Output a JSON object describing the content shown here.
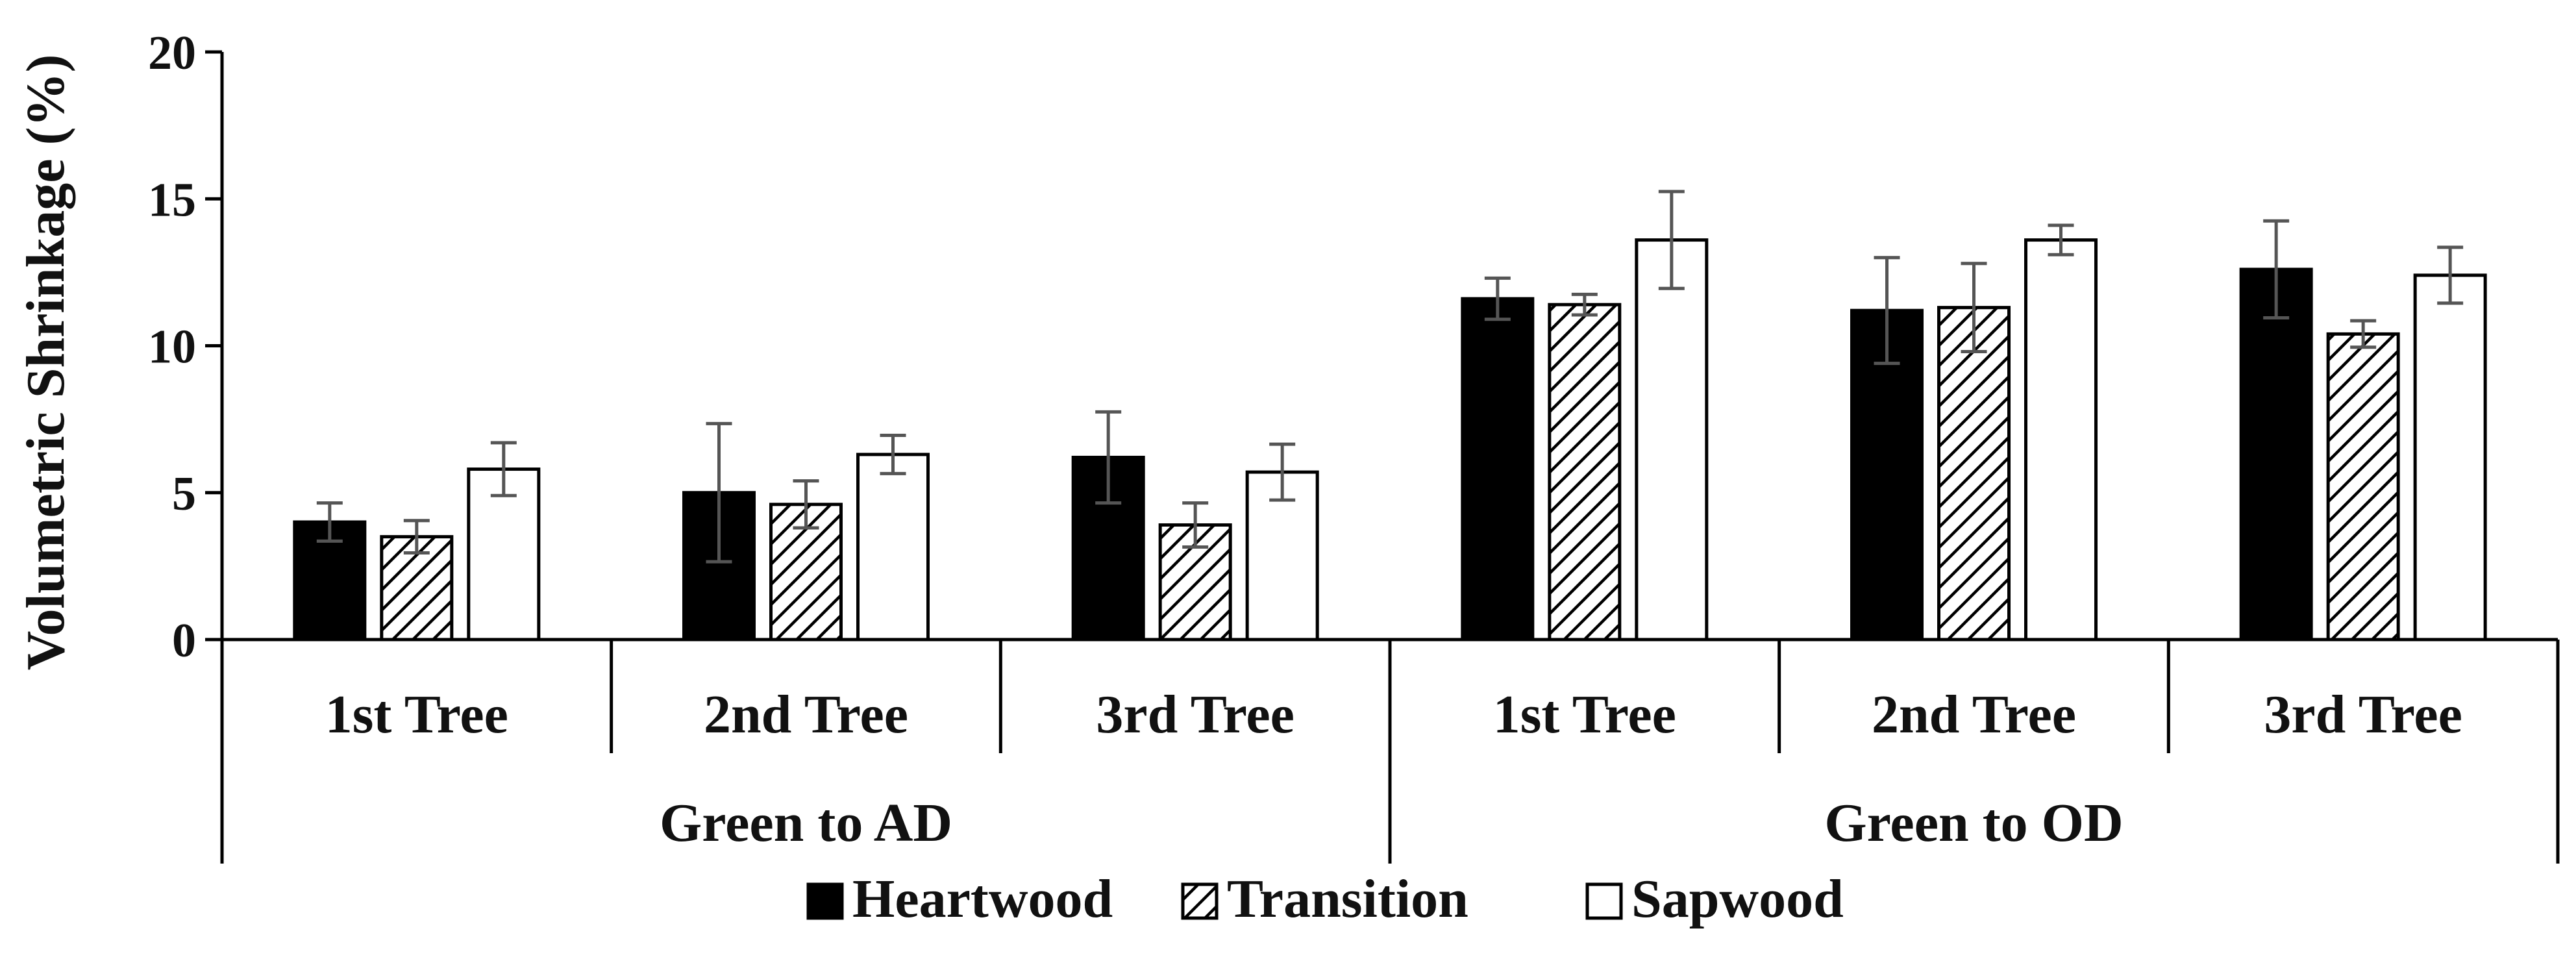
{
  "chart_data": {
    "type": "bar",
    "ylabel": "Volumetric Shrinkage (%)",
    "xlabel": "",
    "ylim": [
      0,
      20
    ],
    "yticks": [
      0,
      5,
      10,
      15,
      20
    ],
    "grid": false,
    "legend_position": "bottom",
    "groups": [
      {
        "name": "Green to AD",
        "categories": [
          "1st Tree",
          "2nd Tree",
          "3rd Tree"
        ]
      },
      {
        "name": "Green to OD",
        "categories": [
          "1st Tree",
          "2nd Tree",
          "3rd Tree"
        ]
      }
    ],
    "series": [
      {
        "name": "Heartwood",
        "fill": "solid",
        "color": "#000000",
        "values": [
          4.0,
          5.0,
          6.2,
          11.6,
          11.2,
          12.6
        ],
        "errors": [
          0.65,
          2.35,
          1.55,
          0.7,
          1.8,
          1.65
        ]
      },
      {
        "name": "Transition",
        "fill": "hatched",
        "color": "#000000",
        "values": [
          3.5,
          4.6,
          3.9,
          11.4,
          11.3,
          10.4
        ],
        "errors": [
          0.55,
          0.8,
          0.75,
          0.35,
          1.5,
          0.45
        ]
      },
      {
        "name": "Sapwood",
        "fill": "hollow",
        "color": "#ffffff",
        "values": [
          5.8,
          6.3,
          5.7,
          13.6,
          13.6,
          12.4
        ],
        "errors": [
          0.9,
          0.65,
          0.95,
          1.65,
          0.5,
          0.95
        ]
      }
    ]
  }
}
